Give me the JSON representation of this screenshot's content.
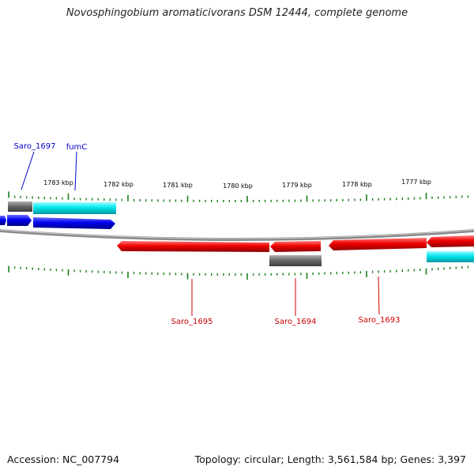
{
  "title": "Novosphingobium aromaticivorans DSM 12444, complete genome",
  "colors": {
    "forward": "#0000ee",
    "reverse": "#ee0000",
    "rna_like": "#00e5ee",
    "other": "#666666",
    "tick": "#1a7f1a",
    "backbone": "#888888"
  },
  "kbp_labels": [
    "1783 kbp",
    "1782 kbp",
    "1781 kbp",
    "1780 kbp",
    "1779 kbp",
    "1778 kbp",
    "1777 kbp"
  ],
  "gene_labels": {
    "saro_1697": "Saro_1697",
    "fumc": "fumC",
    "saro_1695": "Saro_1695",
    "saro_1694": "Saro_1694",
    "saro_1693": "Saro_1693"
  },
  "footer": {
    "accession": "Accession: NC_007794",
    "summary": "Topology: circular; Length: 3,561,584 bp; Genes: 3,397"
  }
}
